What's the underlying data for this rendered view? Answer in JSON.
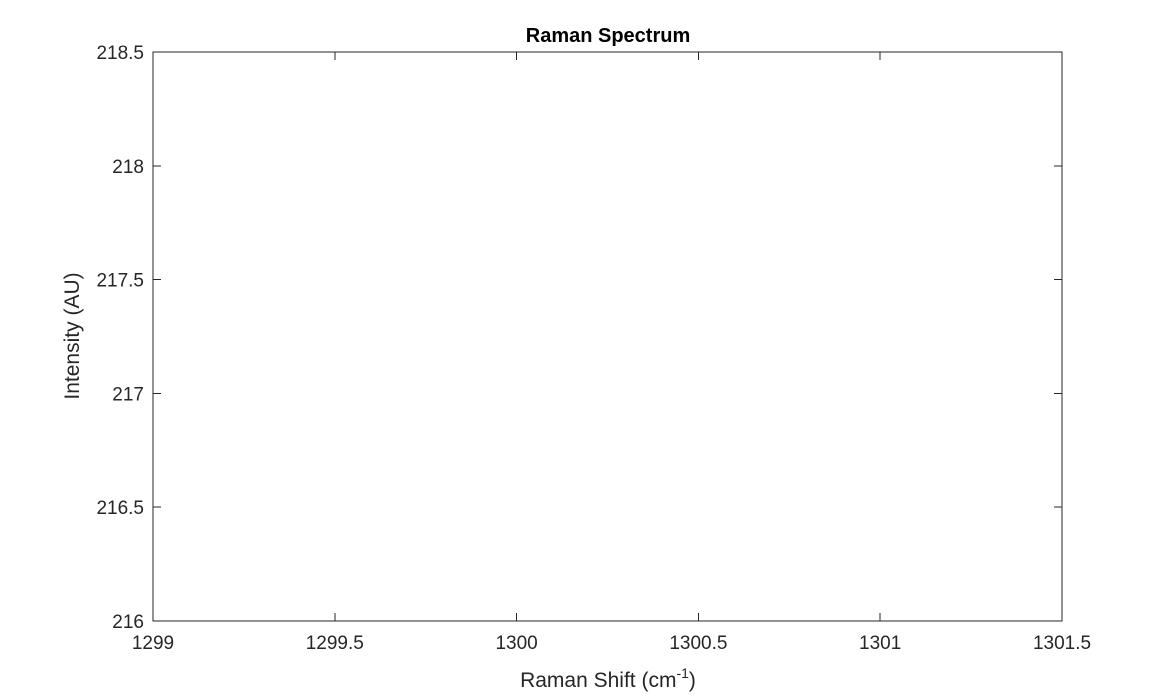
{
  "chart_data": {
    "type": "line",
    "title": "Raman Spectrum",
    "xlabel": {
      "main": "Raman Shift (cm",
      "superscript": "-1",
      "close": ")"
    },
    "ylabel": "Intensity (AU)",
    "xlim": [
      1299,
      1301.5
    ],
    "ylim": [
      216,
      218.5
    ],
    "x_ticks": [
      1299,
      1299.5,
      1300,
      1300.5,
      1301,
      1301.5
    ],
    "x_tick_labels": [
      "1299",
      "1299.5",
      "1300",
      "1300.5",
      "1301",
      "1301.5"
    ],
    "y_ticks": [
      216,
      216.5,
      217,
      217.5,
      218,
      218.5
    ],
    "y_tick_labels": [
      "216",
      "216.5",
      "217",
      "217.5",
      "218",
      "218.5"
    ],
    "series": [],
    "grid": false,
    "colors": {
      "axes": "#262626",
      "background": "#ffffff"
    }
  }
}
